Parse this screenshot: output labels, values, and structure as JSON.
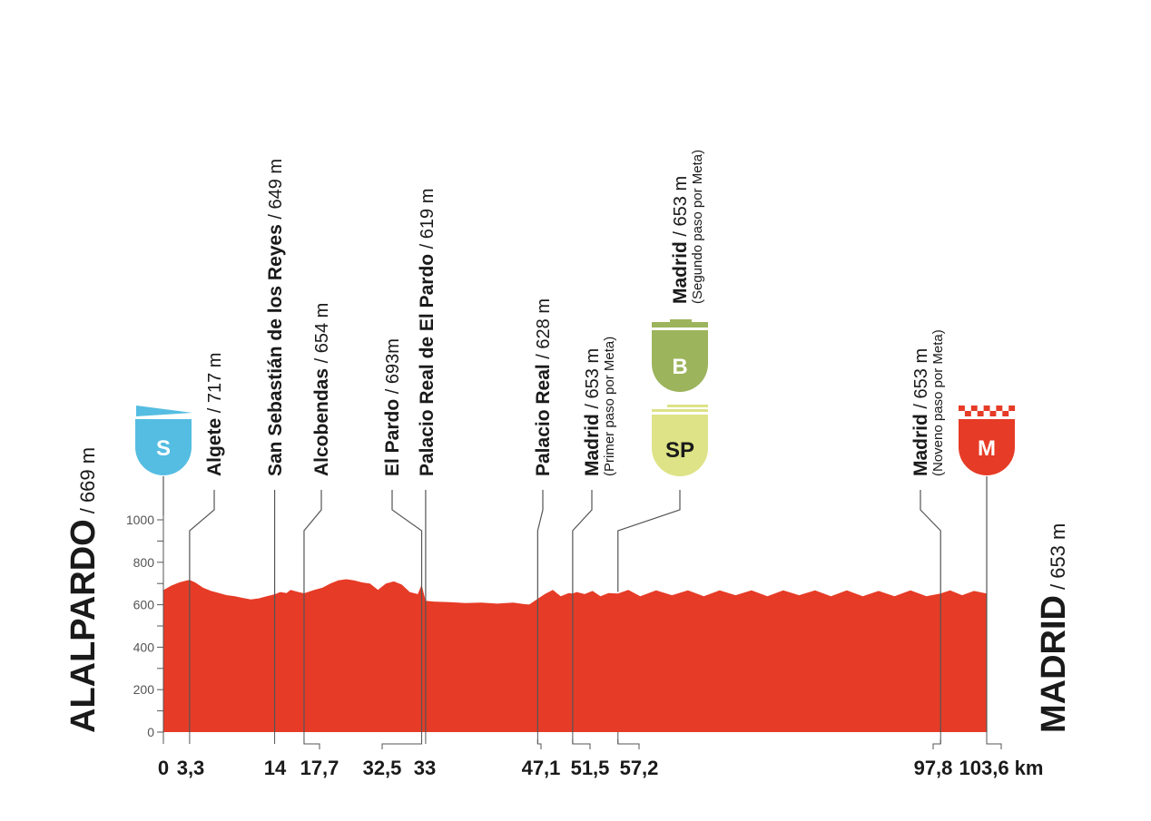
{
  "colors": {
    "profile": "#e63b26",
    "grid": "#b42a1a",
    "start_badge": "#55bde2",
    "bonus_badge": "#9cb45c",
    "sprint_badge": "#dde386",
    "finish_badge": "#e63b26",
    "line": "#555555"
  },
  "start": {
    "name": "ALALPARDO",
    "altitude": "/ 669 m"
  },
  "finish": {
    "name": "MADRID",
    "altitude": "/ 653 m"
  },
  "badges": {
    "start": {
      "letter": "S",
      "km": 0
    },
    "bonus": {
      "letter": "B",
      "km": 57.2
    },
    "sprint": {
      "letter": "SP",
      "km": 57.2
    },
    "finish": {
      "letter": "M",
      "km": 103.6
    }
  },
  "waypoints": [
    {
      "km_label": "3,3",
      "km": 3.3,
      "name": "Algete",
      "alt": " / 717 m",
      "sub": ""
    },
    {
      "km_label": "14",
      "km": 14,
      "name": "San Sebastián de los Reyes",
      "alt": " / 649 m",
      "sub": ""
    },
    {
      "km_label": "17,7",
      "km": 17.7,
      "name": "Alcobendas",
      "alt": " / 654 m",
      "sub": ""
    },
    {
      "km_label": "32,5",
      "km": 32.5,
      "name": "El Pardo",
      "alt": " / 693m",
      "sub": ""
    },
    {
      "km_label": "33",
      "km": 33,
      "name": "Palacio Real de El Pardo",
      "alt": " / 619 m",
      "sub": ""
    },
    {
      "km_label": "47,1",
      "km": 47.1,
      "name": "Palacio Real",
      "alt": " / 628 m",
      "sub": ""
    },
    {
      "km_label": "51,5",
      "km": 51.5,
      "name": "Madrid",
      "alt": " / 653 m",
      "sub": "(Primer paso por Meta)"
    },
    {
      "km_label": "57,2",
      "km": 57.2,
      "name": "Madrid",
      "alt": " / 653 m",
      "sub": "(Segundo paso por Meta)"
    },
    {
      "km_label": "97,8",
      "km": 97.8,
      "name": "Madrid",
      "alt": " / 653 m",
      "sub": "(Noveno paso por Meta)"
    }
  ],
  "x_axis": {
    "start_label": "0",
    "end_label": "103,6 km"
  },
  "y_axis": {
    "ticks": [
      "0",
      "200",
      "400",
      "600",
      "800",
      "1000"
    ]
  },
  "chart_data": {
    "type": "area",
    "title": "",
    "xlabel": "km",
    "ylabel": "m",
    "xlim": [
      0,
      103.6
    ],
    "ylim": [
      0,
      1000
    ],
    "grid": true,
    "y_ticks": [
      0,
      200,
      400,
      600,
      800,
      1000
    ],
    "x_ticks": [
      0,
      3.3,
      14,
      17.7,
      32.5,
      33,
      47.1,
      51.5,
      57.2,
      97.8,
      103.6
    ],
    "x_tick_labels": [
      "0",
      "3,3",
      "14",
      "17,7",
      "32,5",
      "33",
      "47,1",
      "51,5",
      "57,2",
      "97,8",
      "103,6 km"
    ],
    "x": [
      0,
      1,
      2,
      3,
      3.3,
      4,
      5,
      6,
      7,
      8,
      9,
      10,
      11,
      12,
      13,
      14,
      14.7,
      15.5,
      16,
      17,
      17.7,
      19,
      20,
      21,
      22,
      23,
      24,
      25,
      26,
      27,
      28,
      29,
      30,
      31,
      32,
      32.5,
      33,
      34,
      36,
      38,
      40,
      42,
      44,
      46,
      47.1,
      48,
      49,
      50,
      51,
      51.5,
      52,
      53,
      54,
      55,
      56,
      57.2,
      58.5,
      60,
      62,
      64,
      66,
      68,
      70,
      72,
      74,
      76,
      78,
      80,
      82,
      84,
      86,
      88,
      90,
      92,
      94,
      96,
      97.8,
      99,
      100.5,
      102,
      103.6
    ],
    "values": [
      669,
      690,
      705,
      715,
      717,
      705,
      680,
      665,
      655,
      645,
      640,
      632,
      625,
      630,
      640,
      649,
      660,
      655,
      670,
      660,
      654,
      670,
      680,
      700,
      715,
      720,
      715,
      705,
      700,
      670,
      700,
      710,
      695,
      660,
      650,
      693,
      619,
      615,
      612,
      608,
      610,
      605,
      610,
      600,
      628,
      650,
      670,
      640,
      655,
      653,
      660,
      650,
      665,
      640,
      655,
      653,
      670,
      640,
      668,
      645,
      668,
      640,
      668,
      645,
      668,
      640,
      668,
      645,
      668,
      640,
      668,
      640,
      665,
      640,
      668,
      640,
      653,
      668,
      645,
      665,
      653
    ],
    "annotations": [
      "ALALPARDO / 669 m",
      "MADRID / 653 m"
    ]
  }
}
